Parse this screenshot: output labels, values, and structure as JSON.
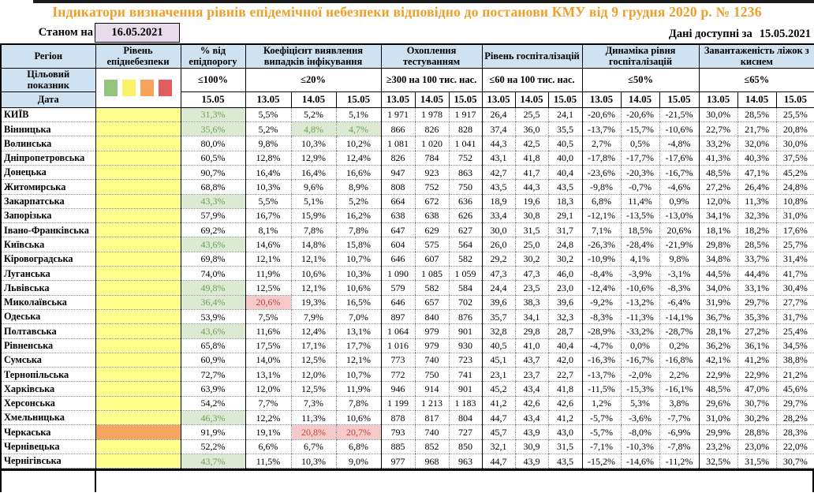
{
  "title": "Індикатори визначення рівнів епідемічної небезпеки відповідно до постанови КМУ від 9 грудня 2020 р. № 1236",
  "as_of": {
    "label": "Станом на",
    "value": "16.05.2021"
  },
  "available": {
    "label": "Дані доступні за",
    "value": "15.05.2021"
  },
  "colors": {
    "title_orange": "#EF9F28",
    "header_blue": "#CEE2F2",
    "level_yellow": "#FFFF8E",
    "level_orange": "#F6A55F",
    "good_bg": "#DCEAD4",
    "good_text": "#6E9F56",
    "bad_bg": "#F7CACA",
    "bad_text": "#C04343",
    "asof_box_bg": "#E8DCEC"
  },
  "table": {
    "region_header": "Регіон",
    "target_row_label": "Цільовий показник",
    "date_row_label": "Дата",
    "level_swatch_colors": [
      "#94C47D",
      "#FBF168",
      "#F6A45C",
      "#E25D5D"
    ],
    "groups": [
      {
        "label": "Рівень епіднебезпеки",
        "target": "",
        "dates": [],
        "swatches": true
      },
      {
        "label": "% від епідпорогу",
        "target": "≤100%",
        "dates": [
          "15.05"
        ]
      },
      {
        "label": "Коефіцієнт виявлення випадків інфікування",
        "target": "≤20%",
        "dates": [
          "13.05",
          "14.05",
          "15.05"
        ]
      },
      {
        "label": "Охоплення тестуванням",
        "target": "≥300 на 100 тис. нас.",
        "dates": [
          "13.05",
          "14.05",
          "15.05"
        ]
      },
      {
        "label": "Рівень госпіталізацій",
        "target": "≤60 на 100 тис. нас.",
        "dates": [
          "13.05",
          "14.05",
          "15.05"
        ]
      },
      {
        "label": "Динаміка рівня госпіталізацій",
        "target": "≤50%",
        "dates": [
          "13.05",
          "14.05",
          "15.05"
        ]
      },
      {
        "label": "Завантаженість ліжок з киснем",
        "target": "≤65%",
        "dates": [
          "13.05",
          "14.05",
          "15.05"
        ]
      }
    ],
    "rows": [
      {
        "region": "КИЇВ",
        "level": "yellow",
        "cells": [
          {
            "v": "31,3%",
            "h": "green"
          },
          "5,5%",
          "5,2%",
          "5,1%",
          "1 971",
          "1 978",
          "1 917",
          "26,4",
          "25,5",
          "24,1",
          "-20,6%",
          "-20,6%",
          "-21,5%",
          "30,0%",
          "28,5%",
          "25,5%"
        ]
      },
      {
        "region": "Вінницька",
        "level": "yellow",
        "cells": [
          {
            "v": "35,6%",
            "h": "green"
          },
          "5,2%",
          {
            "v": "4,8%",
            "h": "green"
          },
          {
            "v": "4,7%",
            "h": "green"
          },
          "866",
          "826",
          "828",
          "37,4",
          "36,0",
          "35,5",
          "-13,7%",
          "-15,7%",
          "-10,6%",
          "22,7%",
          "21,7%",
          "20,8%"
        ]
      },
      {
        "region": "Волинська",
        "level": "yellow",
        "cells": [
          "80,0%",
          "9,8%",
          "10,3%",
          "10,2%",
          "1 081",
          "1 020",
          "1 041",
          "44,3",
          "42,5",
          "40,5",
          "2,7%",
          "0,5%",
          "-4,8%",
          "33,2%",
          "32,0%",
          "30,0%"
        ]
      },
      {
        "region": "Дніпропетровська",
        "level": "yellow",
        "cells": [
          "60,5%",
          "12,8%",
          "12,9%",
          "12,4%",
          "826",
          "784",
          "752",
          "43,1",
          "41,8",
          "40,0",
          "-17,8%",
          "-17,7%",
          "-17,6%",
          "41,3%",
          "40,3%",
          "37,5%"
        ]
      },
      {
        "region": "Донецька",
        "level": "yellow",
        "cells": [
          "90,7%",
          "16,4%",
          "16,4%",
          "16,6%",
          "947",
          "923",
          "863",
          "42,7",
          "41,7",
          "40,4",
          "-23,6%",
          "-20,3%",
          "-16,7%",
          "48,5%",
          "47,1%",
          "45,2%"
        ]
      },
      {
        "region": "Житомирська",
        "level": "yellow",
        "cells": [
          "68,8%",
          "10,3%",
          "9,6%",
          "8,9%",
          "808",
          "752",
          "750",
          "43,5",
          "44,3",
          "43,5",
          "-9,8%",
          "-0,7%",
          "-4,6%",
          "27,2%",
          "26,4%",
          "24,8%"
        ]
      },
      {
        "region": "Закарпатська",
        "level": "yellow",
        "cells": [
          {
            "v": "43,3%",
            "h": "green"
          },
          "5,5%",
          "5,1%",
          "5,2%",
          "664",
          "672",
          "636",
          "18,9",
          "19,6",
          "18,3",
          "6,8%",
          "11,4%",
          "0,9%",
          "12,0%",
          "11,3%",
          "10,8%"
        ]
      },
      {
        "region": "Запорізька",
        "level": "yellow",
        "cells": [
          "57,9%",
          "16,7%",
          "15,9%",
          "16,2%",
          "638",
          "638",
          "626",
          "33,4",
          "30,8",
          "29,1",
          "-12,1%",
          "-13,5%",
          "-13,0%",
          "34,1%",
          "32,3%",
          "31,0%"
        ]
      },
      {
        "region": "Івано-Франківська",
        "level": "yellow",
        "cells": [
          "69,2%",
          "8,1%",
          "7,8%",
          "7,8%",
          "647",
          "629",
          "627",
          "30,0",
          "31,5",
          "31,7",
          "7,1%",
          "18,5%",
          "20,6%",
          "18,1%",
          "18,2%",
          "17,6%"
        ]
      },
      {
        "region": "Київська",
        "level": "yellow",
        "cells": [
          {
            "v": "43,6%",
            "h": "green"
          },
          "14,6%",
          "14,8%",
          "15,8%",
          "604",
          "575",
          "564",
          "26,0",
          "25,0",
          "24,8",
          "-26,3%",
          "-28,4%",
          "-21,9%",
          "29,8%",
          "28,5%",
          "25,7%"
        ]
      },
      {
        "region": "Кіровоградська",
        "level": "yellow",
        "cells": [
          "69,8%",
          "12,1%",
          "12,1%",
          "10,7%",
          "646",
          "607",
          "582",
          "29,2",
          "30,2",
          "30,2",
          "-10,9%",
          "4,1%",
          "9,8%",
          "34,8%",
          "33,7%",
          "31,4%"
        ]
      },
      {
        "region": "Луганська",
        "level": "yellow",
        "cells": [
          "74,0%",
          "11,9%",
          "10,6%",
          "10,3%",
          "1 090",
          "1 085",
          "1 059",
          "47,3",
          "47,3",
          "46,0",
          "-8,4%",
          "-3,9%",
          "-3,1%",
          "44,5%",
          "44,4%",
          "41,7%"
        ]
      },
      {
        "region": "Львівська",
        "level": "yellow",
        "cells": [
          {
            "v": "49,8%",
            "h": "green"
          },
          "12,5%",
          "12,1%",
          "10,6%",
          "579",
          "582",
          "584",
          "24,4",
          "23,5",
          "23,0",
          "-12,4%",
          "-10,6%",
          "-8,3%",
          "34,0%",
          "33,1%",
          "30,4%"
        ]
      },
      {
        "region": "Миколаївська",
        "level": "yellow",
        "cells": [
          {
            "v": "36,4%",
            "h": "green"
          },
          {
            "v": "20,6%",
            "h": "red"
          },
          "19,3%",
          "16,5%",
          "646",
          "657",
          "702",
          "39,6",
          "38,3",
          "39,6",
          "-9,2%",
          "-13,2%",
          "-6,4%",
          "31,9%",
          "29,7%",
          "27,7%"
        ]
      },
      {
        "region": "Одеська",
        "level": "yellow",
        "cells": [
          "53,9%",
          "7,5%",
          "7,9%",
          "7,0%",
          "897",
          "840",
          "876",
          "35,7",
          "34,1",
          "32,3",
          "-8,3%",
          "-11,3%",
          "-14,1%",
          "36,7%",
          "35,3%",
          "31,7%"
        ]
      },
      {
        "region": "Полтавська",
        "level": "yellow",
        "cells": [
          {
            "v": "43,6%",
            "h": "green"
          },
          "11,6%",
          "12,4%",
          "13,1%",
          "1 064",
          "979",
          "901",
          "32,8",
          "29,8",
          "28,7",
          "-28,9%",
          "-33,2%",
          "-28,7%",
          "28,1%",
          "27,2%",
          "25,4%"
        ]
      },
      {
        "region": "Рівненська",
        "level": "yellow",
        "cells": [
          "65,8%",
          "17,5%",
          "17,1%",
          "17,7%",
          "1 016",
          "979",
          "930",
          "40,5",
          "41,0",
          "40,4",
          "-4,7%",
          "0,0%",
          "0,2%",
          "36,2%",
          "36,1%",
          "34,5%"
        ]
      },
      {
        "region": "Сумська",
        "level": "yellow",
        "cells": [
          "60,9%",
          "14,0%",
          "12,5%",
          "12,1%",
          "773",
          "740",
          "723",
          "45,1",
          "43,7",
          "42,0",
          "-16,3%",
          "-16,7%",
          "-16,8%",
          "42,1%",
          "41,2%",
          "38,8%"
        ]
      },
      {
        "region": "Тернопільська",
        "level": "yellow",
        "cells": [
          "72,7%",
          "13,1%",
          "12,0%",
          "10,7%",
          "772",
          "750",
          "741",
          "23,1",
          "23,7",
          "22,7",
          "-13,7%",
          "-2,0%",
          "2,2%",
          "22,9%",
          "22,9%",
          "21,2%"
        ]
      },
      {
        "region": "Харківська",
        "level": "yellow",
        "cells": [
          "63,9%",
          "12,0%",
          "12,5%",
          "11,9%",
          "946",
          "914",
          "901",
          "45,2",
          "43,4",
          "41,8",
          "-11,5%",
          "-15,3%",
          "-16,1%",
          "48,5%",
          "47,0%",
          "45,6%"
        ]
      },
      {
        "region": "Херсонська",
        "level": "yellow",
        "cells": [
          "54,2%",
          "7,7%",
          "7,3%",
          "7,8%",
          "1 199",
          "1 213",
          "1 183",
          "41,2",
          "42,6",
          "42,6",
          "1,2%",
          "5,3%",
          "3,8%",
          "29,6%",
          "30,7%",
          "29,7%"
        ]
      },
      {
        "region": "Хмельницька",
        "level": "yellow",
        "cells": [
          {
            "v": "46,3%",
            "h": "green"
          },
          "12,2%",
          "11,3%",
          "10,6%",
          "878",
          "817",
          "804",
          "44,7",
          "43,4",
          "41,2",
          "-5,7%",
          "-3,6%",
          "-7,7%",
          "31,0%",
          "30,2%",
          "28,2%"
        ]
      },
      {
        "region": "Черкаська",
        "level": "orange",
        "cells": [
          "91,9%",
          "19,1%",
          {
            "v": "20,8%",
            "h": "red"
          },
          {
            "v": "20,7%",
            "h": "red"
          },
          "793",
          "740",
          "727",
          "45,7",
          "43,9",
          "43,0",
          "-5,7%",
          "-8,0%",
          "-6,9%",
          "29,9%",
          "28,8%",
          "28,3%"
        ]
      },
      {
        "region": "Чернівецька",
        "level": "yellow",
        "cells": [
          "52,2%",
          "6,6%",
          "6,7%",
          "6,8%",
          "885",
          "852",
          "850",
          "32,1",
          "30,9",
          "31,5",
          "-7,1%",
          "-10,3%",
          "-7,8%",
          "23,2%",
          "23,0%",
          "22,0%"
        ]
      },
      {
        "region": "Чернігівська",
        "level": "yellow",
        "cells": [
          {
            "v": "43,7%",
            "h": "green"
          },
          "11,5%",
          "10,3%",
          "9,0%",
          "977",
          "968",
          "963",
          "44,7",
          "43,9",
          "43,5",
          "-15,2%",
          "-14,6%",
          "-11,2%",
          "32,5%",
          "31,5%",
          "30,7%"
        ]
      }
    ]
  }
}
